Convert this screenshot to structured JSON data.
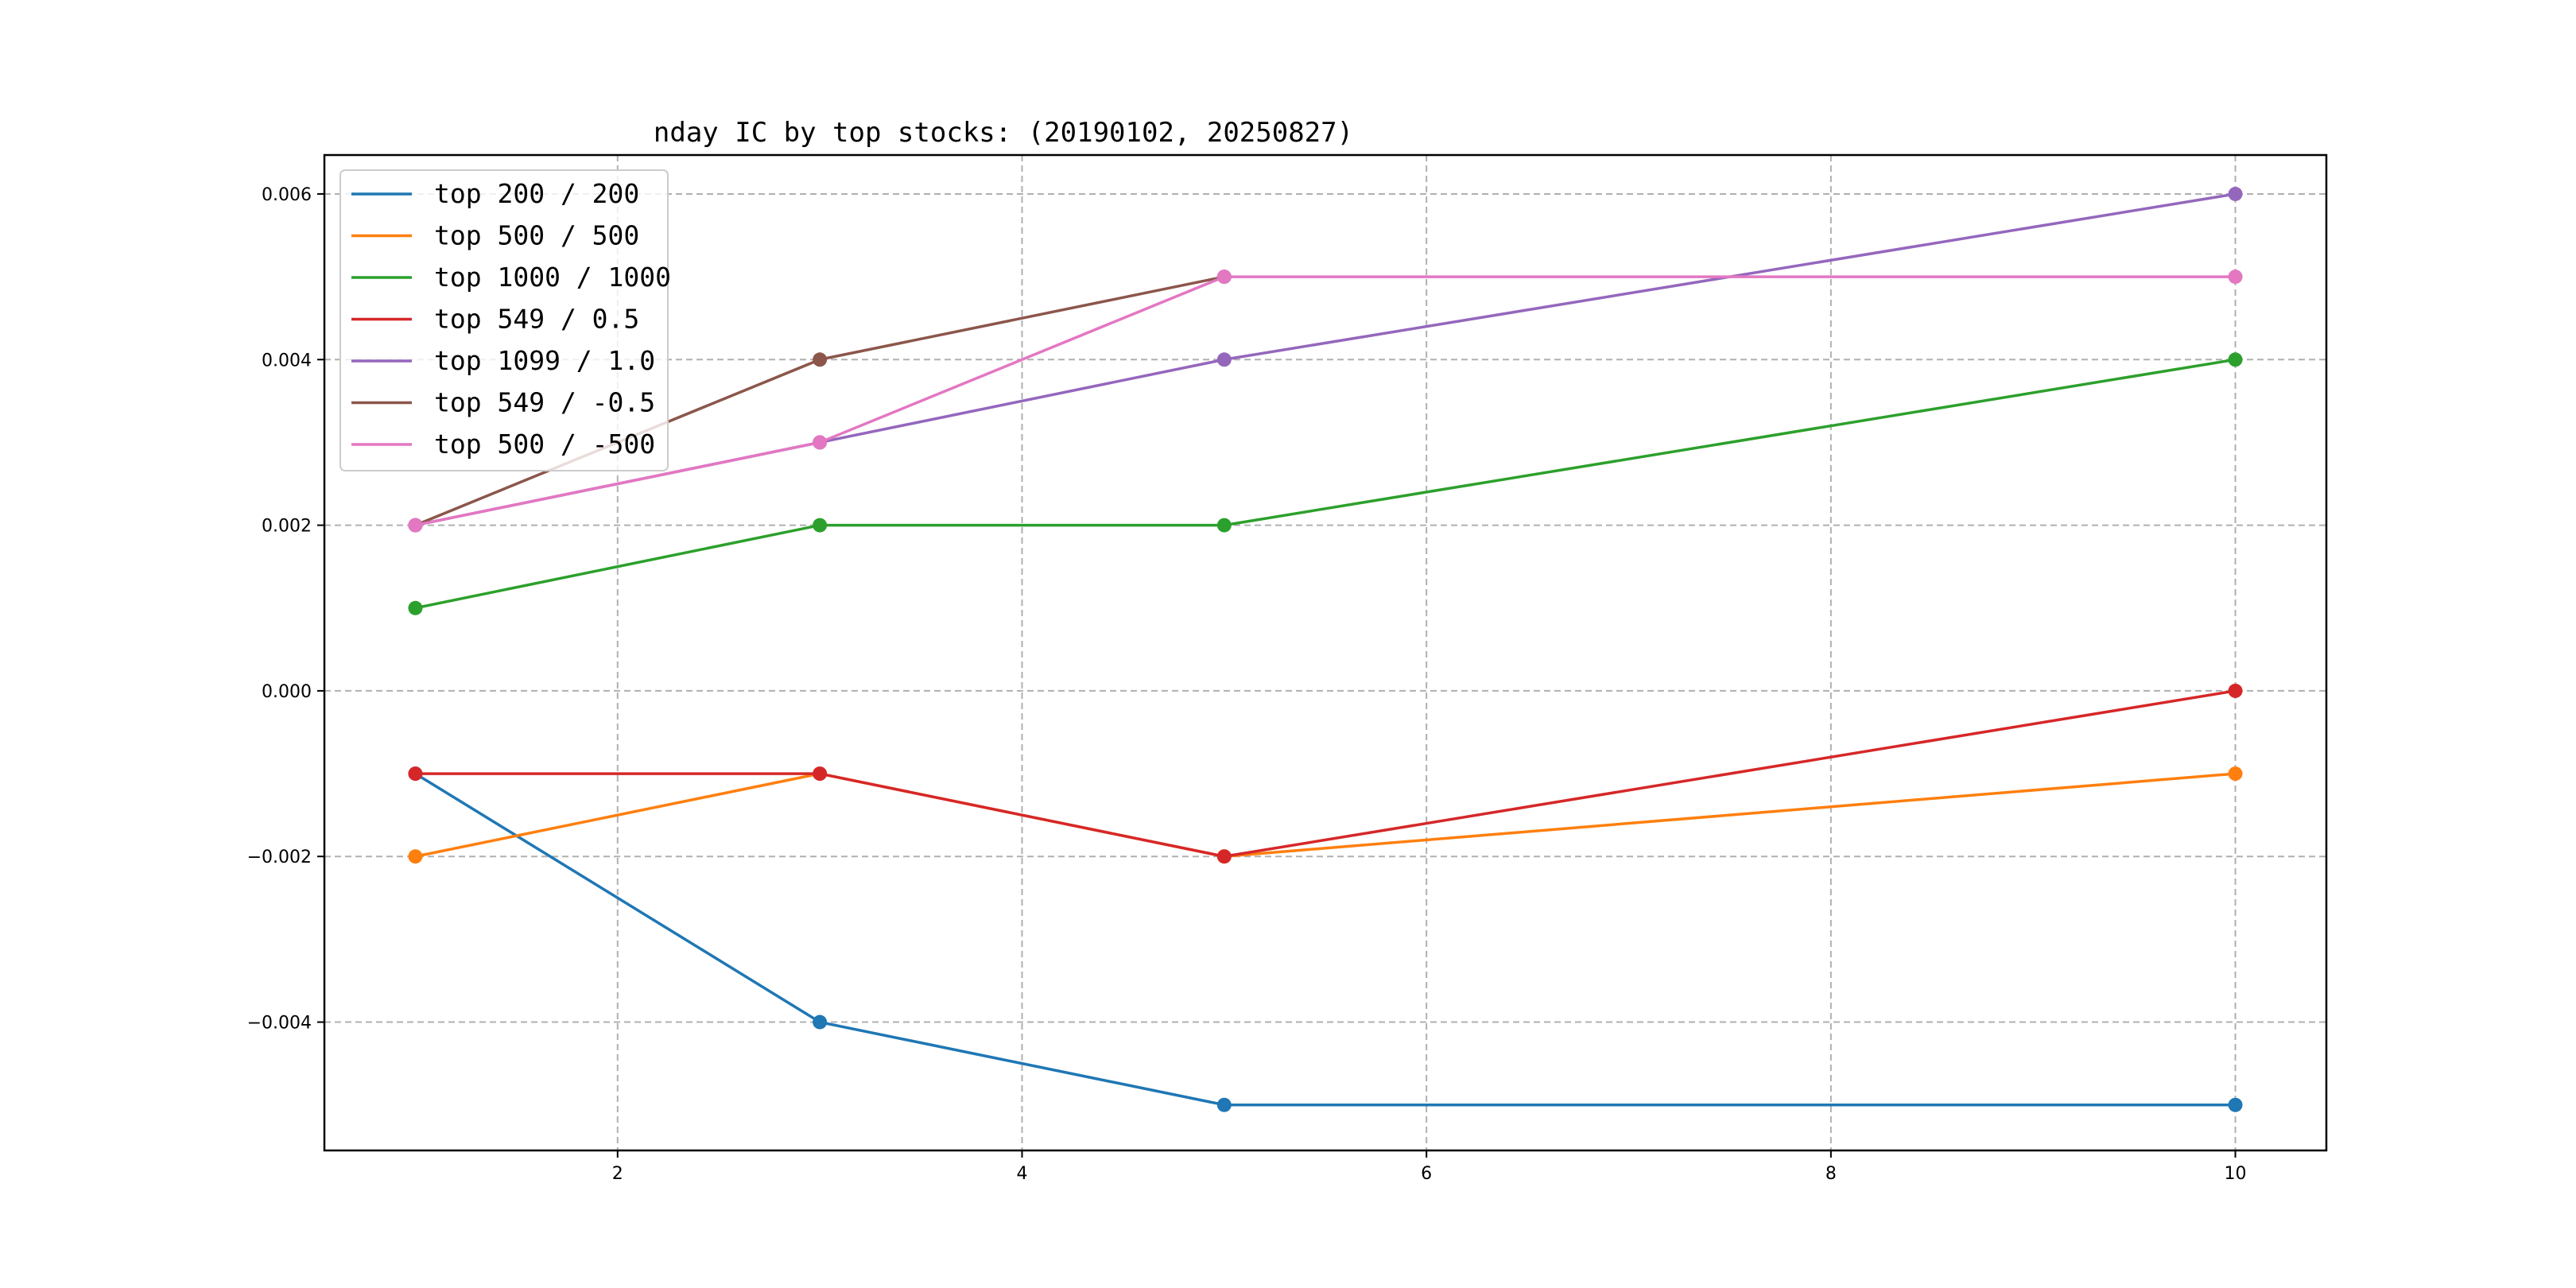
{
  "chart_data": {
    "type": "line",
    "title": "nday IC by top stocks: (20190102, 20250827)",
    "xlabel": "",
    "ylabel": "",
    "x": [
      1,
      3,
      5,
      10
    ],
    "xlim": [
      0.55,
      10.45
    ],
    "ylim": [
      -0.00555,
      0.00647
    ],
    "xticks": [
      2,
      4,
      6,
      8,
      10
    ],
    "xtick_labels": [
      "2",
      "4",
      "6",
      "8",
      "10"
    ],
    "yticks": [
      -0.004,
      -0.002,
      0.0,
      0.002,
      0.004,
      0.006
    ],
    "ytick_labels": [
      "−0.004",
      "−0.002",
      "0.000",
      "0.002",
      "0.004",
      "0.006"
    ],
    "grid": true,
    "legend_position": "top-left",
    "markers": "circle",
    "series": [
      {
        "name": "top 200 / 200",
        "color": "#1f77b4",
        "values": [
          -0.001,
          -0.004,
          -0.005,
          -0.005
        ]
      },
      {
        "name": "top 500 / 500",
        "color": "#ff7f0e",
        "values": [
          -0.002,
          -0.001,
          -0.002,
          -0.001
        ]
      },
      {
        "name": "top 1000 / 1000",
        "color": "#2ca02c",
        "values": [
          0.001,
          0.002,
          0.002,
          0.004
        ]
      },
      {
        "name": "top 549 / 0.5",
        "color": "#d62728",
        "values": [
          -0.001,
          -0.001,
          -0.002,
          0.0
        ]
      },
      {
        "name": "top 1099 / 1.0",
        "color": "#9467bd",
        "values": [
          0.002,
          0.003,
          0.004,
          0.006
        ]
      },
      {
        "name": "top 549 / -0.5",
        "color": "#8c564b",
        "values": [
          0.002,
          0.004,
          0.005,
          null
        ]
      },
      {
        "name": "top 500 / -500",
        "color": "#e377c2",
        "values": [
          0.002,
          0.003,
          0.005,
          0.005
        ]
      }
    ]
  }
}
